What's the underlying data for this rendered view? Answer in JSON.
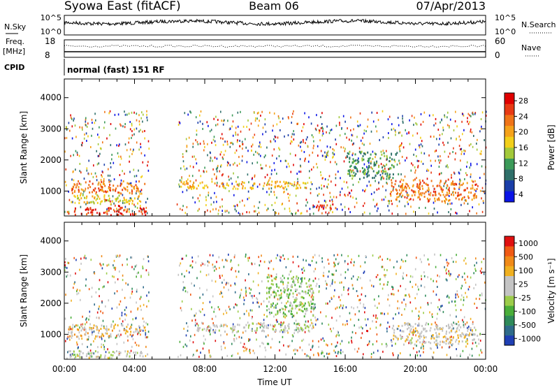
{
  "header": {
    "station": "Syowa East (fitACF)",
    "beam": "Beam 06",
    "date": "07/Apr/2013"
  },
  "params": {
    "nsky_label": "N.Sky",
    "nsky_ticks": [
      "10^5",
      "10^0"
    ],
    "nsearch_label": "N.Search",
    "nsearch_ticks": [
      "10^5",
      "10^0"
    ],
    "freq_label": "Freq.",
    "freq_unit": "[MHz]",
    "freq_ticks": [
      "18",
      "8"
    ],
    "nave_label": "Nave",
    "nave_ticks": [
      "60",
      "0"
    ],
    "cpid_label": "CPID",
    "cpid_text": "normal (fast) 151 RF"
  },
  "colors": {
    "power": [
      "#0a14e6",
      "#1a3ea8",
      "#2f6f6a",
      "#3c9a59",
      "#a3c93a",
      "#f2cf1a",
      "#f5a21a",
      "#f07418",
      "#e83a14",
      "#e00000"
    ],
    "velocity": [
      "#1f3fb4",
      "#2f6b8a",
      "#2f8a5a",
      "#4aae3a",
      "#9ccc4a",
      "#c4c4c4",
      "#c4c4c4",
      "#f0b020",
      "#f08a18",
      "#f05a14",
      "#e01010"
    ]
  },
  "chart_data": [
    {
      "type": "heatmap",
      "title": "",
      "xlabel": "",
      "ylabel": "Slant Range [km]",
      "ylim": [
        200,
        4600
      ],
      "y_ticks": [
        "1000",
        "2000",
        "3000",
        "4000"
      ],
      "x_ticks": [],
      "colorbar": {
        "label": "Power [dB]",
        "ticks": [
          "4",
          "8",
          "12",
          "16",
          "20",
          "24",
          "28"
        ],
        "range": [
          0,
          30
        ]
      },
      "bands": [
        {
          "t0": 0.2,
          "t1": 4.6,
          "r0": 950,
          "r1": 1350,
          "level": 22
        },
        {
          "t0": 0.0,
          "t1": 4.8,
          "r0": 250,
          "r1": 500,
          "level": 26
        },
        {
          "t0": 0.3,
          "t1": 4.3,
          "r0": 600,
          "r1": 900,
          "level": 16
        },
        {
          "t0": 6.5,
          "t1": 14.0,
          "r0": 1100,
          "r1": 1350,
          "level": 18
        },
        {
          "t0": 14.2,
          "t1": 15.5,
          "r0": 450,
          "r1": 650,
          "level": 26
        },
        {
          "t0": 18.5,
          "t1": 23.5,
          "r0": 700,
          "r1": 1400,
          "level": 22
        },
        {
          "t0": 16.0,
          "t1": 19.0,
          "r0": 1400,
          "r1": 2300,
          "level": 10
        }
      ]
    },
    {
      "type": "heatmap",
      "title": "",
      "xlabel": "Time UT",
      "ylabel": "Slant Range [km]",
      "ylim": [
        200,
        4600
      ],
      "y_ticks": [
        "1000",
        "2000",
        "3000",
        "4000"
      ],
      "x_ticks": [
        "00:00",
        "04:00",
        "08:00",
        "12:00",
        "16:00",
        "20:00",
        "00:00"
      ],
      "colorbar": {
        "label": "Velocity [m s⁻¹]",
        "ticks": [
          "1000",
          "500",
          "100",
          "25",
          "-25",
          "-100",
          "-500",
          "-1000"
        ],
        "range": [
          -1000,
          1000
        ]
      },
      "bands": [
        {
          "t0": 0.2,
          "t1": 4.6,
          "r0": 950,
          "r1": 1350,
          "level": 300
        },
        {
          "t0": 0.0,
          "t1": 4.8,
          "r0": 250,
          "r1": 500,
          "level": 60
        },
        {
          "t0": 7.5,
          "t1": 14.0,
          "r0": 1100,
          "r1": 1400,
          "level": 0
        },
        {
          "t0": 11.5,
          "t1": 14.2,
          "r0": 1600,
          "r1": 2900,
          "level": -200
        },
        {
          "t0": 18.5,
          "t1": 23.5,
          "r0": 700,
          "r1": 1400,
          "level": 150
        }
      ]
    }
  ]
}
